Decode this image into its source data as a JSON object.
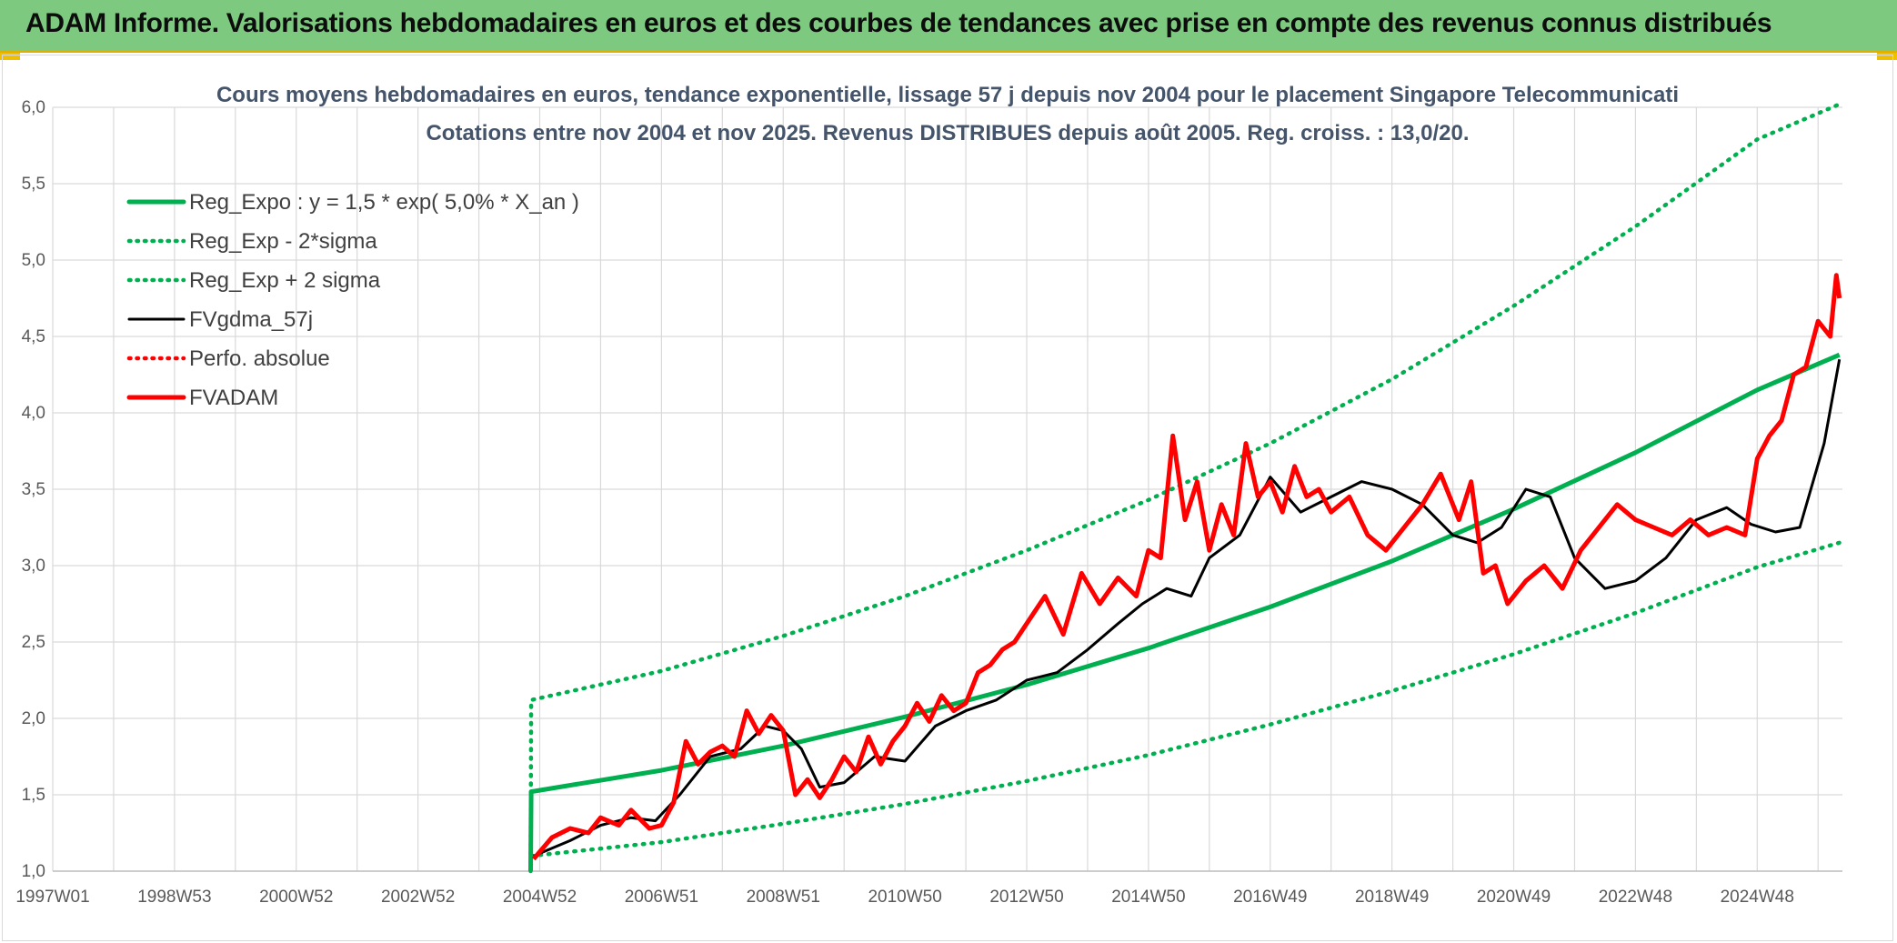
{
  "header": {
    "title": "ADAM Informe. Valorisations hebdomadaires en euros et des courbes de tendances avec prise en compte des revenus connus distribués"
  },
  "colors": {
    "header_bg": "#7dc97f",
    "reg_expo": "#00b050",
    "fvgdma": "#000000",
    "fvadam": "#ff0000",
    "perfo": "#ff0000"
  },
  "chart_data": {
    "type": "line",
    "title": [
      "Cours moyens hebdomadaires en euros, tendance exponentielle, lissage 57 j depuis nov 2004 pour le placement Singapore Telecommunicati",
      "Cotations entre nov 2004 et nov 2025. Revenus DISTRIBUES depuis août 2005. Reg. croiss. : 13,0/20."
    ],
    "x_tick_labels": [
      "1997W01",
      "1998W53",
      "2000W52",
      "2002W52",
      "2004W52",
      "2006W51",
      "2008W51",
      "2010W50",
      "2012W50",
      "2014W50",
      "2016W49",
      "2018W49",
      "2020W49",
      "2022W48",
      "2024W48"
    ],
    "x_tick_years": [
      1997.0,
      1999.0,
      2001.0,
      2003.0,
      2005.0,
      2007.0,
      2009.0,
      2011.0,
      2013.0,
      2015.0,
      2017.0,
      2019.0,
      2021.0,
      2023.0,
      2025.0
    ],
    "xlim": [
      1997.0,
      2026.4
    ],
    "ylim": [
      1.0,
      6.0
    ],
    "y_ticks": [
      "1,0",
      "1,5",
      "2,0",
      "2,5",
      "3,0",
      "3,5",
      "4,0",
      "4,5",
      "5,0",
      "5,5",
      "6,0"
    ],
    "grid": true,
    "legend_position": "top-left",
    "series": [
      {
        "name": "Reg_Expo : y = 1,5 * exp( 5,0% *  X_an )",
        "style": "solid-thick",
        "color": "#00b050",
        "x": [
          2004.85,
          2004.86,
          2007,
          2009,
          2011,
          2013,
          2015,
          2017,
          2019,
          2021,
          2023,
          2025,
          2026.35
        ],
        "y": [
          1.0,
          1.52,
          1.66,
          1.82,
          2.01,
          2.22,
          2.46,
          2.73,
          3.03,
          3.37,
          3.74,
          4.15,
          4.38
        ]
      },
      {
        "name": "Reg_Exp - 2*sigma",
        "style": "dotted",
        "color": "#00b050",
        "x": [
          2004.86,
          2007,
          2009,
          2011,
          2013,
          2015,
          2017,
          2019,
          2021,
          2023,
          2025,
          2026.35
        ],
        "y": [
          1.1,
          1.19,
          1.31,
          1.44,
          1.59,
          1.76,
          1.96,
          2.18,
          2.42,
          2.69,
          2.99,
          3.15
        ]
      },
      {
        "name": "Reg_Exp + 2 sigma",
        "style": "dotted",
        "color": "#00b050",
        "x": [
          2004.85,
          2004.86,
          2007,
          2009,
          2011,
          2013,
          2015,
          2017,
          2019,
          2021,
          2023,
          2025,
          2026.35
        ],
        "y": [
          1.0,
          2.12,
          2.31,
          2.54,
          2.8,
          3.1,
          3.43,
          3.8,
          4.22,
          4.7,
          5.22,
          5.79,
          6.02
        ]
      },
      {
        "name": "FVgdma_57j",
        "style": "solid",
        "color": "#000000",
        "x": [
          2004.9,
          2005.5,
          2006.0,
          2006.5,
          2006.9,
          2007.3,
          2007.8,
          2008.3,
          2008.7,
          2009.0,
          2009.3,
          2009.6,
          2010.0,
          2010.5,
          2011.0,
          2011.5,
          2012.0,
          2012.5,
          2013.0,
          2013.5,
          2014.0,
          2014.5,
          2014.9,
          2015.3,
          2015.7,
          2016.0,
          2016.5,
          2017.0,
          2017.5,
          2018.0,
          2018.5,
          2019.0,
          2019.5,
          2020.0,
          2020.4,
          2020.8,
          2021.2,
          2021.6,
          2022.0,
          2022.5,
          2023.0,
          2023.5,
          2024.0,
          2024.5,
          2024.9,
          2025.3,
          2025.7,
          2026.1,
          2026.35
        ],
        "y": [
          1.1,
          1.2,
          1.3,
          1.35,
          1.33,
          1.5,
          1.75,
          1.8,
          1.95,
          1.92,
          1.8,
          1.55,
          1.58,
          1.75,
          1.72,
          1.95,
          2.05,
          2.12,
          2.25,
          2.3,
          2.45,
          2.62,
          2.75,
          2.85,
          2.8,
          3.05,
          3.2,
          3.58,
          3.35,
          3.45,
          3.55,
          3.5,
          3.4,
          3.2,
          3.15,
          3.25,
          3.5,
          3.45,
          3.05,
          2.85,
          2.9,
          3.05,
          3.3,
          3.38,
          3.27,
          3.22,
          3.25,
          3.8,
          4.35
        ]
      },
      {
        "name": "Perfo. absolue",
        "style": "dotted",
        "color": "#ff0000",
        "x": [],
        "y": []
      },
      {
        "name": "FVADAM",
        "style": "solid-thick",
        "color": "#ff0000",
        "x": [
          2004.9,
          2005.2,
          2005.5,
          2005.8,
          2006.0,
          2006.3,
          2006.5,
          2006.8,
          2007.0,
          2007.2,
          2007.4,
          2007.6,
          2007.8,
          2008.0,
          2008.2,
          2008.4,
          2008.6,
          2008.8,
          2009.0,
          2009.2,
          2009.4,
          2009.6,
          2009.8,
          2010.0,
          2010.2,
          2010.4,
          2010.6,
          2010.8,
          2011.0,
          2011.2,
          2011.4,
          2011.6,
          2011.8,
          2012.0,
          2012.2,
          2012.4,
          2012.6,
          2012.8,
          2013.0,
          2013.3,
          2013.6,
          2013.9,
          2014.2,
          2014.5,
          2014.8,
          2015.0,
          2015.2,
          2015.4,
          2015.6,
          2015.8,
          2016.0,
          2016.2,
          2016.4,
          2016.6,
          2016.8,
          2017.0,
          2017.2,
          2017.4,
          2017.6,
          2017.8,
          2018.0,
          2018.3,
          2018.6,
          2018.9,
          2019.2,
          2019.5,
          2019.8,
          2020.1,
          2020.3,
          2020.5,
          2020.7,
          2020.9,
          2021.2,
          2021.5,
          2021.8,
          2022.1,
          2022.4,
          2022.7,
          2023.0,
          2023.3,
          2023.6,
          2023.9,
          2024.2,
          2024.5,
          2024.8,
          2025.0,
          2025.2,
          2025.4,
          2025.6,
          2025.8,
          2026.0,
          2026.2,
          2026.3,
          2026.35
        ],
        "y": [
          1.08,
          1.22,
          1.28,
          1.25,
          1.35,
          1.3,
          1.4,
          1.28,
          1.3,
          1.45,
          1.85,
          1.7,
          1.78,
          1.82,
          1.75,
          2.05,
          1.9,
          2.02,
          1.92,
          1.5,
          1.6,
          1.48,
          1.6,
          1.75,
          1.65,
          1.88,
          1.7,
          1.85,
          1.95,
          2.1,
          1.98,
          2.15,
          2.05,
          2.1,
          2.3,
          2.35,
          2.45,
          2.5,
          2.62,
          2.8,
          2.55,
          2.95,
          2.75,
          2.92,
          2.8,
          3.1,
          3.05,
          3.85,
          3.3,
          3.55,
          3.1,
          3.4,
          3.2,
          3.8,
          3.45,
          3.55,
          3.35,
          3.65,
          3.45,
          3.5,
          3.35,
          3.45,
          3.2,
          3.1,
          3.25,
          3.4,
          3.6,
          3.3,
          3.55,
          2.95,
          3.0,
          2.75,
          2.9,
          3.0,
          2.85,
          3.1,
          3.25,
          3.4,
          3.3,
          3.25,
          3.2,
          3.3,
          3.2,
          3.25,
          3.2,
          3.7,
          3.85,
          3.95,
          4.25,
          4.3,
          4.6,
          4.5,
          4.9,
          4.75
        ]
      }
    ]
  }
}
